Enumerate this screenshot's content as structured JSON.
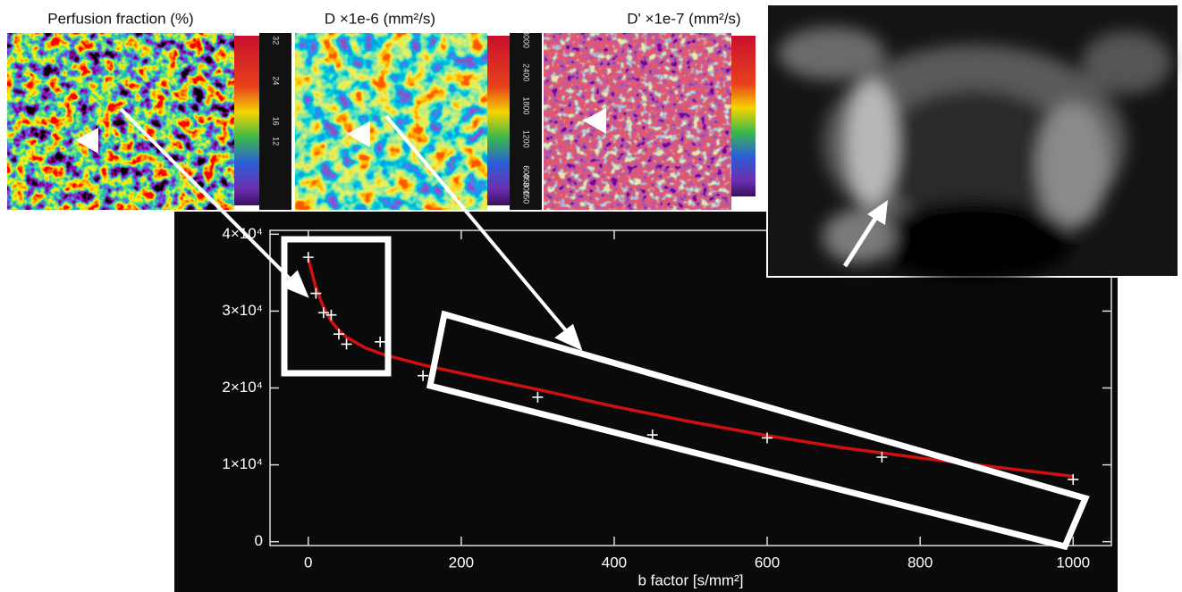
{
  "panels": [
    {
      "title": "Perfusion fraction (%)",
      "colorbar_labels": [
        32,
        24,
        16,
        12
      ]
    },
    {
      "title": "D ×1e-6 (mm²/s)",
      "colorbar_labels": [
        3000,
        2400,
        1800,
        1200,
        600,
        450,
        300,
        150
      ]
    },
    {
      "title": "D' ×1e-7 (mm²/s)"
    }
  ],
  "chart_data": {
    "type": "scatter",
    "xlabel": "b factor [s/mm²]",
    "xlim": [
      -50,
      1050
    ],
    "ylim": [
      -500,
      40500
    ],
    "xticks": [
      0,
      200,
      400,
      600,
      800,
      1000
    ],
    "yticks": [
      0,
      {
        "value": 10000,
        "label": "1×10⁴"
      },
      {
        "value": 20000,
        "label": "2×10⁴"
      },
      {
        "value": 30000,
        "label": "3×10⁴"
      },
      {
        "value": 40000,
        "label": "4×10⁴"
      }
    ],
    "series": [
      {
        "color": "#ffffff",
        "x": [
          0,
          10,
          20,
          30,
          40,
          50,
          94,
          150,
          300,
          450,
          600,
          750,
          1000
        ],
        "values": [
          37000,
          32300,
          29800,
          29500,
          27000,
          25700,
          26000,
          21600,
          18800,
          13900,
          13500,
          11000,
          8100
        ]
      },
      {
        "color": "#d01010",
        "x": [
          0,
          10,
          20,
          30,
          40,
          50,
          75,
          100,
          150,
          200,
          300,
          400,
          500,
          600,
          700,
          800,
          900,
          1000
        ],
        "values": [
          36800,
          33000,
          30500,
          28700,
          27500,
          26600,
          25200,
          24300,
          23000,
          21900,
          19800,
          17600,
          15600,
          13800,
          12200,
          10900,
          9700,
          8500
        ]
      }
    ]
  }
}
